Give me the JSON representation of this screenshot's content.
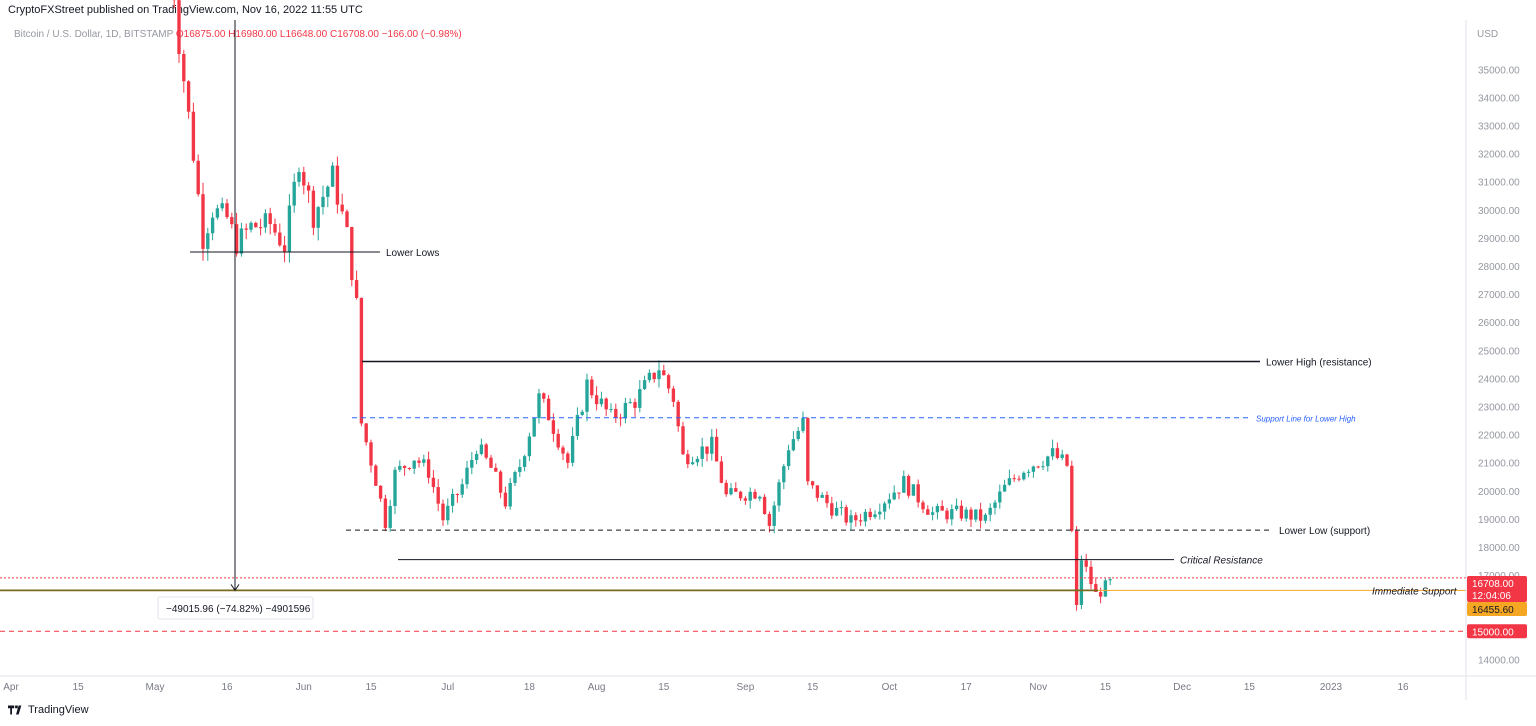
{
  "header": {
    "publisher_line": "CryptoFXStreet published on TradingView.com, Nov 16, 2022 11:55 UTC",
    "symbol_line": "Bitcoin / U.S. Dollar, 1D, BITSTAMP",
    "ohlc": {
      "open": "O16875.00",
      "high": "H16980.00",
      "low": "L16648.00",
      "close": "C16708.00",
      "change": "−166.00 (−0.98%)"
    }
  },
  "axis": {
    "currency": "USD",
    "y_ticks": [
      "35000.00",
      "34000.00",
      "33000.00",
      "32000.00",
      "31000.00",
      "30000.00",
      "29000.00",
      "28000.00",
      "27000.00",
      "26000.00",
      "25000.00",
      "24000.00",
      "23000.00",
      "22000.00",
      "21000.00",
      "20000.00",
      "19000.00",
      "18000.00",
      "17000.00",
      "14000.00"
    ],
    "x_ticks": [
      "Apr",
      "15",
      "May",
      "16",
      "Jun",
      "15",
      "Jul",
      "18",
      "Aug",
      "15",
      "Sep",
      "15",
      "Oct",
      "17",
      "Nov",
      "15",
      "Dec",
      "15",
      "2023",
      "16"
    ]
  },
  "price_badges": {
    "last_price": "16708.00",
    "countdown": "12:04:06",
    "immediate_support_price": "16455.60",
    "level_15000": "15000.00"
  },
  "annotations": {
    "lower_lows": "Lower Lows",
    "lower_high": "Lower High (resistance)",
    "support_line": "Support Line for Lower High",
    "lower_low_support": "Lower Low (support)",
    "critical_resistance": "Critical Resistance",
    "immediate_support": "Immediate Support",
    "measure": "−49015.96 (−74.82%) −4901596"
  },
  "colors": {
    "up": "#26a69a",
    "down": "#f23645",
    "support_blue": "#2962ff",
    "immediate_support": "#f5a623",
    "accent_red": "#f23645"
  },
  "chart_data": {
    "type": "candlestick",
    "title": "Bitcoin / U.S. Dollar, 1D, BITSTAMP",
    "ylim": [
      14000,
      36000
    ],
    "y_scale": "linear",
    "y_unit": "USD",
    "legend": "none",
    "grid": false,
    "levels": [
      {
        "label": "Lower Lows",
        "price": 28500
      },
      {
        "label": "Lower High (resistance)",
        "price": 24600
      },
      {
        "label": "Support Line for Lower High",
        "price": 22600,
        "style": "dashed"
      },
      {
        "label": "Lower Low (support)",
        "price": 18600,
        "style": "dashed"
      },
      {
        "label": "Critical Resistance",
        "price": 17550
      },
      {
        "label": "Immediate Support",
        "price": 16455.6
      },
      {
        "label": "",
        "price": 15000,
        "style": "dashed"
      }
    ],
    "path": [
      [
        "2022-05-04",
        39500
      ],
      [
        "2022-05-06",
        36000
      ],
      [
        "2022-05-09",
        32000
      ],
      [
        "2022-05-11",
        29000
      ],
      [
        "2022-05-13",
        30000
      ],
      [
        "2022-05-16",
        29700
      ],
      [
        "2022-05-18",
        28800
      ],
      [
        "2022-05-21",
        29400
      ],
      [
        "2022-05-25",
        29500
      ],
      [
        "2022-05-28",
        28700
      ],
      [
        "2022-05-31",
        31800
      ],
      [
        "2022-06-03",
        29800
      ],
      [
        "2022-06-07",
        31200
      ],
      [
        "2022-06-10",
        29100
      ],
      [
        "2022-06-12",
        26600
      ],
      [
        "2022-06-13",
        22400
      ],
      [
        "2022-06-16",
        20400
      ],
      [
        "2022-06-18",
        18900
      ],
      [
        "2022-06-20",
        20600
      ],
      [
        "2022-06-24",
        21200
      ],
      [
        "2022-06-27",
        20700
      ],
      [
        "2022-06-30",
        19000
      ],
      [
        "2022-07-04",
        20200
      ],
      [
        "2022-07-07",
        21600
      ],
      [
        "2022-07-10",
        20800
      ],
      [
        "2022-07-13",
        19600
      ],
      [
        "2022-07-16",
        20900
      ],
      [
        "2022-07-20",
        23300
      ],
      [
        "2022-07-22",
        22700
      ],
      [
        "2022-07-26",
        21000
      ],
      [
        "2022-07-30",
        23800
      ],
      [
        "2022-08-04",
        22600
      ],
      [
        "2022-08-09",
        23200
      ],
      [
        "2022-08-14",
        24400
      ],
      [
        "2022-08-17",
        23300
      ],
      [
        "2022-08-19",
        21200
      ],
      [
        "2022-08-25",
        21600
      ],
      [
        "2022-08-28",
        19800
      ],
      [
        "2022-09-04",
        20000
      ],
      [
        "2022-09-06",
        18800
      ],
      [
        "2022-09-10",
        21600
      ],
      [
        "2022-09-13",
        22400
      ],
      [
        "2022-09-14",
        20200
      ],
      [
        "2022-09-19",
        19400
      ],
      [
        "2022-09-23",
        18900
      ],
      [
        "2022-09-28",
        19400
      ],
      [
        "2022-10-04",
        20300
      ],
      [
        "2022-10-10",
        19200
      ],
      [
        "2022-10-16",
        19200
      ],
      [
        "2022-10-21",
        19000
      ],
      [
        "2022-10-25",
        20100
      ],
      [
        "2022-10-29",
        20800
      ],
      [
        "2022-11-04",
        21300
      ],
      [
        "2022-11-07",
        20900
      ],
      [
        "2022-11-08",
        18500
      ],
      [
        "2022-11-09",
        15800
      ],
      [
        "2022-11-10",
        17600
      ],
      [
        "2022-11-13",
        16300
      ],
      [
        "2022-11-16",
        16708
      ]
    ]
  }
}
